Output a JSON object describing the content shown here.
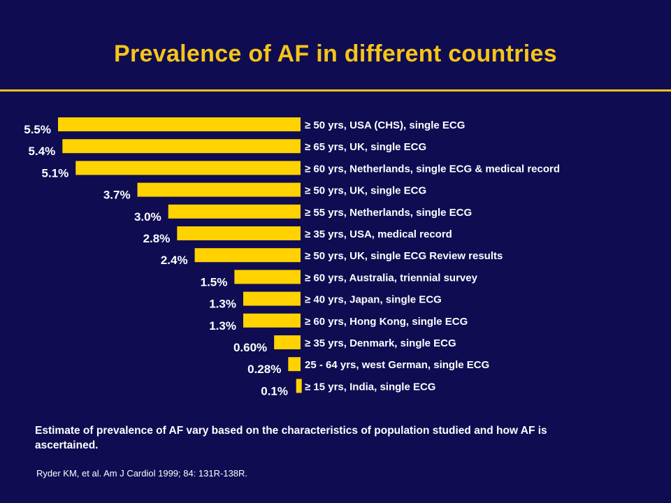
{
  "title": "Prevalence of AF in different countries",
  "note": "Estimate of prevalence of AF vary based on the characteristics of population studied  and how AF is ascertained.",
  "citation": "Ryder KM, et al. Am J Cardiol 1999; 84: 131R-138R.",
  "colors": {
    "background": "#0f0c52",
    "bar": "#ffd200",
    "title": "#f5c518",
    "text": "#ffffff"
  },
  "chart_data": {
    "type": "bar",
    "orientation": "horizontal",
    "direction": "right-to-left",
    "xlim": [
      0,
      5.5
    ],
    "categories": [
      "≥ 50 yrs, USA (CHS), single ECG",
      "≥ 65 yrs, UK, single ECG",
      "≥ 60 yrs, Netherlands, single ECG & medical record",
      "≥ 50 yrs, UK, single ECG",
      "≥ 55 yrs, Netherlands, single ECG",
      "≥ 35 yrs, USA, medical record",
      "≥ 50 yrs, UK, single ECG Review results",
      "≥ 60 yrs, Australia, triennial survey",
      "≥ 40 yrs, Japan, single ECG",
      "≥ 60 yrs, Hong Kong, single ECG",
      "≥ 35 yrs, Denmark, single ECG",
      "25 - 64 yrs, west German, single ECG",
      "≥ 15 yrs, India, single ECG"
    ],
    "values": [
      5.5,
      5.4,
      5.1,
      3.7,
      3.0,
      2.8,
      2.4,
      1.5,
      1.3,
      1.3,
      0.6,
      0.28,
      0.1
    ],
    "value_labels": [
      "5.5%",
      "5.4%",
      "5.1%",
      "3.7%",
      "3.0%",
      "2.8%",
      "2.4%",
      "1.5%",
      "1.3%",
      "1.3%",
      "0.60%",
      "0.28%",
      "0.1%"
    ]
  }
}
